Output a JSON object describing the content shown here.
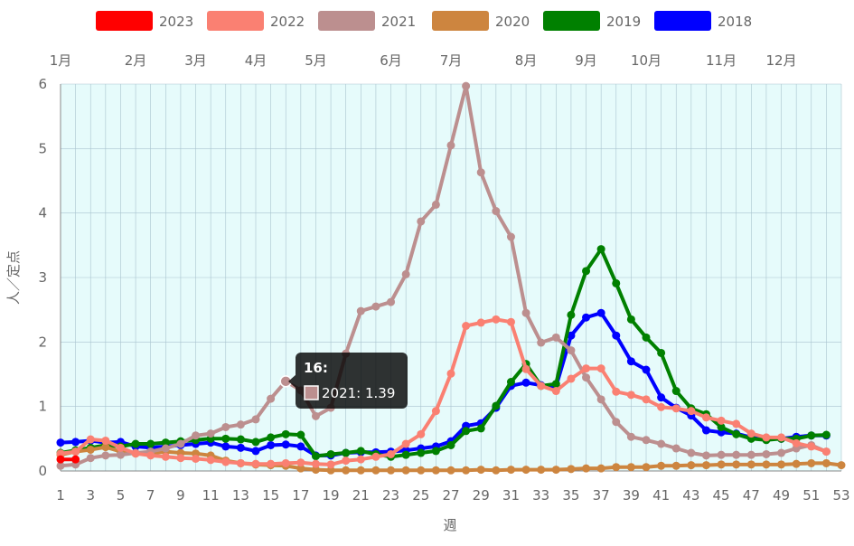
{
  "chart_data": {
    "type": "line",
    "xlabel": "週",
    "ylabel": "人／定点",
    "xlim": [
      1,
      53
    ],
    "ylim": [
      0,
      6
    ],
    "x_ticks": [
      1,
      3,
      5,
      7,
      9,
      11,
      13,
      15,
      17,
      19,
      21,
      23,
      25,
      27,
      29,
      31,
      33,
      35,
      37,
      39,
      41,
      43,
      45,
      47,
      49,
      51,
      53
    ],
    "y_ticks": [
      0,
      1,
      2,
      3,
      4,
      5,
      6
    ],
    "grid": true,
    "legend_position": "top",
    "month_labels": [
      {
        "label": "1月",
        "week": 1
      },
      {
        "label": "2月",
        "week": 6
      },
      {
        "label": "3月",
        "week": 10
      },
      {
        "label": "4月",
        "week": 14
      },
      {
        "label": "5月",
        "week": 18
      },
      {
        "label": "6月",
        "week": 23
      },
      {
        "label": "7月",
        "week": 27
      },
      {
        "label": "8月",
        "week": 32
      },
      {
        "label": "9月",
        "week": 36
      },
      {
        "label": "10月",
        "week": 40
      },
      {
        "label": "11月",
        "week": 45
      },
      {
        "label": "12月",
        "week": 49
      }
    ],
    "series": [
      {
        "name": "2023",
        "color": "#ff0000",
        "x": [
          1,
          2
        ],
        "values": [
          0.18,
          0.18
        ]
      },
      {
        "name": "2022",
        "color": "#fa8072",
        "x": [
          1,
          2,
          3,
          4,
          5,
          6,
          7,
          8,
          9,
          10,
          11,
          12,
          13,
          14,
          15,
          16,
          17,
          18,
          19,
          20,
          21,
          22,
          23,
          24,
          25,
          26,
          27,
          28,
          29,
          30,
          31,
          32,
          33,
          34,
          35,
          36,
          37,
          38,
          39,
          40,
          41,
          42,
          43,
          44,
          45,
          46,
          47,
          48,
          49,
          50,
          51,
          52
        ],
        "values": [
          0.27,
          0.3,
          0.49,
          0.47,
          0.36,
          0.27,
          0.24,
          0.22,
          0.2,
          0.19,
          0.17,
          0.14,
          0.12,
          0.11,
          0.11,
          0.12,
          0.13,
          0.11,
          0.1,
          0.16,
          0.18,
          0.22,
          0.26,
          0.42,
          0.57,
          0.93,
          1.51,
          2.25,
          2.3,
          2.35,
          2.31,
          1.58,
          1.32,
          1.24,
          1.43,
          1.59,
          1.59,
          1.23,
          1.18,
          1.11,
          0.99,
          0.97,
          0.93,
          0.83,
          0.78,
          0.73,
          0.58,
          0.52,
          0.52,
          0.43,
          0.38,
          0.3
        ]
      },
      {
        "name": "2021",
        "color": "#bc8f8f",
        "x": [
          1,
          2,
          3,
          4,
          5,
          6,
          7,
          8,
          9,
          10,
          11,
          12,
          13,
          14,
          15,
          16,
          17,
          18,
          19,
          20,
          21,
          22,
          23,
          24,
          25,
          26,
          27,
          28,
          29,
          30,
          31,
          32,
          33,
          34,
          35,
          36,
          37,
          38,
          39,
          40,
          41,
          42,
          43,
          44,
          45,
          46,
          47,
          48,
          49,
          50,
          51,
          52
        ],
        "values": [
          0.08,
          0.1,
          0.2,
          0.24,
          0.25,
          0.28,
          0.3,
          0.35,
          0.42,
          0.55,
          0.58,
          0.68,
          0.72,
          0.8,
          1.12,
          1.39,
          1.25,
          0.85,
          0.98,
          1.82,
          2.48,
          2.55,
          2.62,
          3.05,
          3.87,
          4.13,
          5.05,
          5.97,
          4.63,
          4.03,
          3.63,
          2.45,
          1.99,
          2.07,
          1.87,
          1.45,
          1.11,
          0.76,
          0.53,
          0.48,
          0.42,
          0.35,
          0.28,
          0.24,
          0.25,
          0.25,
          0.25,
          0.26,
          0.28,
          0.35,
          0.4,
          0.3
        ]
      },
      {
        "name": "2020",
        "color": "#cd853f",
        "x": [
          1,
          2,
          3,
          4,
          5,
          6,
          7,
          8,
          9,
          10,
          11,
          12,
          13,
          14,
          15,
          16,
          17,
          18,
          19,
          20,
          21,
          22,
          23,
          24,
          25,
          26,
          27,
          28,
          29,
          30,
          31,
          32,
          33,
          34,
          35,
          36,
          37,
          38,
          39,
          40,
          41,
          42,
          43,
          44,
          45,
          46,
          47,
          48,
          49,
          50,
          51,
          52,
          53
        ],
        "values": [
          0.25,
          0.3,
          0.33,
          0.37,
          0.3,
          0.27,
          0.27,
          0.3,
          0.28,
          0.27,
          0.24,
          0.16,
          0.12,
          0.1,
          0.09,
          0.08,
          0.04,
          0.02,
          0.01,
          0.01,
          0.01,
          0.01,
          0.01,
          0.01,
          0.01,
          0.01,
          0.01,
          0.01,
          0.02,
          0.01,
          0.02,
          0.02,
          0.02,
          0.02,
          0.03,
          0.04,
          0.04,
          0.06,
          0.06,
          0.06,
          0.08,
          0.08,
          0.09,
          0.09,
          0.1,
          0.1,
          0.1,
          0.1,
          0.1,
          0.11,
          0.12,
          0.12,
          0.09
        ]
      },
      {
        "name": "2019",
        "color": "#008000",
        "x": [
          1,
          2,
          3,
          4,
          5,
          6,
          7,
          8,
          9,
          10,
          11,
          12,
          13,
          14,
          15,
          16,
          17,
          18,
          19,
          20,
          21,
          22,
          23,
          24,
          25,
          26,
          27,
          28,
          29,
          30,
          31,
          32,
          33,
          34,
          35,
          36,
          37,
          38,
          39,
          40,
          41,
          42,
          43,
          44,
          45,
          46,
          47,
          48,
          49,
          50,
          51,
          52
        ],
        "values": [
          0.28,
          0.32,
          0.36,
          0.4,
          0.38,
          0.42,
          0.42,
          0.44,
          0.46,
          0.48,
          0.5,
          0.5,
          0.49,
          0.45,
          0.52,
          0.57,
          0.56,
          0.23,
          0.26,
          0.28,
          0.31,
          0.26,
          0.22,
          0.25,
          0.28,
          0.31,
          0.4,
          0.62,
          0.66,
          1.01,
          1.38,
          1.66,
          1.32,
          1.35,
          2.42,
          3.1,
          3.44,
          2.91,
          2.35,
          2.07,
          1.83,
          1.24,
          0.97,
          0.88,
          0.68,
          0.57,
          0.5,
          0.48,
          0.5,
          0.5,
          0.55,
          0.56
        ]
      },
      {
        "name": "2018",
        "color": "#0000ff",
        "x": [
          1,
          2,
          3,
          4,
          5,
          6,
          7,
          8,
          9,
          10,
          11,
          12,
          13,
          14,
          15,
          16,
          17,
          18,
          19,
          20,
          21,
          22,
          23,
          24,
          25,
          26,
          27,
          28,
          29,
          30,
          31,
          32,
          33,
          34,
          35,
          36,
          37,
          38,
          39,
          40,
          41,
          42,
          43,
          44,
          45,
          46,
          47,
          48,
          49,
          50,
          51,
          52
        ],
        "values": [
          0.44,
          0.45,
          0.47,
          0.44,
          0.45,
          0.38,
          0.36,
          0.38,
          0.4,
          0.42,
          0.44,
          0.38,
          0.36,
          0.31,
          0.4,
          0.41,
          0.38,
          0.24,
          0.24,
          0.28,
          0.29,
          0.29,
          0.3,
          0.32,
          0.35,
          0.38,
          0.46,
          0.7,
          0.74,
          0.98,
          1.32,
          1.37,
          1.33,
          1.31,
          2.1,
          2.38,
          2.45,
          2.1,
          1.7,
          1.57,
          1.14,
          0.98,
          0.86,
          0.63,
          0.6,
          0.58,
          0.52,
          0.5,
          0.5,
          0.53,
          0.55,
          0.55
        ]
      }
    ]
  },
  "tooltip": {
    "title": "16:",
    "text": "2021: 1.39",
    "series": "2021",
    "week": 16
  }
}
